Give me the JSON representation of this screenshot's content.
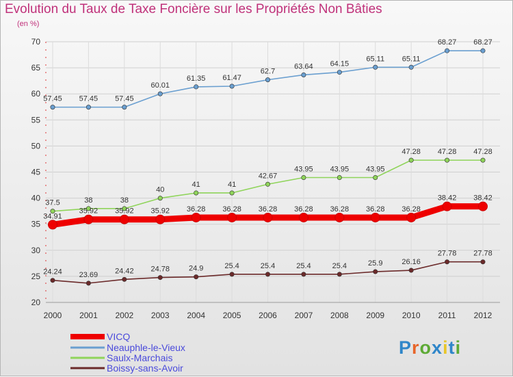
{
  "title": "Evolution du Taux de Taxe Foncière sur les Propriétés Non Bâties",
  "subtitle": "(en %)",
  "logo": {
    "text": "Proxiti",
    "colors": [
      "#2f86c9",
      "#e8652a",
      "#5daa35",
      "#2f86c9",
      "#e8c62a",
      "#2f86c9",
      "#5daa35"
    ]
  },
  "chart_data": {
    "type": "line",
    "title": "Evolution du Taux de Taxe Foncière sur les Propriétés Non Bâties",
    "ylabel": "(en %)",
    "x": [
      "2000",
      "2001",
      "2002",
      "2003",
      "2004",
      "2005",
      "2006",
      "2007",
      "2008",
      "2009",
      "2010",
      "2011",
      "2012"
    ],
    "ylim": [
      20,
      70
    ],
    "yticks": [
      20,
      25,
      30,
      35,
      40,
      45,
      50,
      55,
      60,
      65,
      70
    ],
    "grid": true,
    "legend": "bottom-left",
    "series": [
      {
        "name": "VICQ",
        "color": "#ee0000",
        "values": [
          34.91,
          35.92,
          35.92,
          35.92,
          36.28,
          36.28,
          36.28,
          36.28,
          36.28,
          36.28,
          36.28,
          38.42,
          38.42
        ]
      },
      {
        "name": "Neauphle-le-Vieux",
        "color": "#6a9fd0",
        "values": [
          57.45,
          57.45,
          57.45,
          60.01,
          61.35,
          61.47,
          62.7,
          63.64,
          64.15,
          65.11,
          65.11,
          68.27,
          68.27
        ]
      },
      {
        "name": "Saulx-Marchais",
        "color": "#8fd45a",
        "values": [
          37.5,
          38,
          38,
          40,
          41,
          41,
          42.67,
          43.95,
          43.95,
          43.95,
          47.28,
          47.28,
          47.28
        ]
      },
      {
        "name": "Boissy-sans-Avoir",
        "color": "#6b2a2a",
        "values": [
          24.24,
          23.69,
          24.42,
          24.78,
          24.9,
          25.4,
          25.4,
          25.4,
          25.4,
          25.9,
          26.16,
          27.78,
          27.78
        ]
      }
    ],
    "labels": [
      [
        "34.91",
        "35.92",
        "35.92",
        "35.92",
        "36.28",
        "36.28",
        "36.28",
        "36.28",
        "36.28",
        "36.28",
        "36.28",
        "38.42",
        "38.42"
      ],
      [
        "57.45",
        "57.45",
        "57.45",
        "60.01",
        "61.35",
        "61.47",
        "62.7",
        "63.64",
        "64.15",
        "65.11",
        "65.11",
        "68.27",
        "68.27"
      ],
      [
        "37.5",
        "38",
        "38",
        "40",
        "41",
        "41",
        "42.67",
        "43.95",
        "43.95",
        "43.95",
        "47.28",
        "47.28",
        "47.28"
      ],
      [
        "24.24",
        "23.69",
        "24.42",
        "24.78",
        "24.9",
        "25.4",
        "25.4",
        "25.4",
        "25.4",
        "25.9",
        "26.16",
        "27.78",
        "27.78"
      ]
    ]
  }
}
